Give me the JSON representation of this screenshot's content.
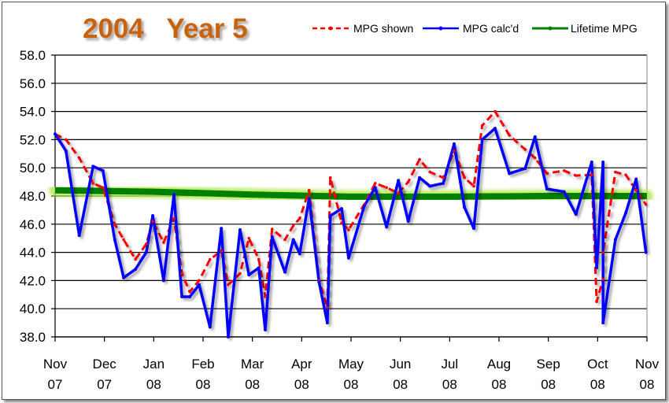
{
  "chart_data": {
    "type": "line",
    "title": "2004   Year 5",
    "xlabel": "",
    "ylabel": "",
    "ylim": [
      38.0,
      58.0
    ],
    "yticks": [
      "38.0",
      "40.0",
      "42.0",
      "44.0",
      "46.0",
      "48.0",
      "50.0",
      "52.0",
      "54.0",
      "56.0",
      "58.0"
    ],
    "xlim": [
      0,
      12
    ],
    "xticks": [
      [
        "Nov",
        "07"
      ],
      [
        "Dec",
        "07"
      ],
      [
        "Jan",
        "08"
      ],
      [
        "Feb",
        "08"
      ],
      [
        "Mar",
        "08"
      ],
      [
        "Apr",
        "08"
      ],
      [
        "May",
        "08"
      ],
      [
        "Jun",
        "08"
      ],
      [
        "Jul",
        "08"
      ],
      [
        "Aug",
        "08"
      ],
      [
        "Sep",
        "08"
      ],
      [
        "Oct",
        "08"
      ],
      [
        "Nov",
        "08"
      ]
    ],
    "x_units": "months since Nov 07",
    "grid": "horizontal",
    "legend_position": "top-right",
    "x": [
      0,
      0.22,
      0.49,
      0.77,
      0.97,
      1.21,
      1.39,
      1.63,
      1.85,
      1.98,
      2.2,
      2.41,
      2.57,
      2.73,
      2.92,
      3.14,
      3.37,
      3.51,
      3.75,
      3.93,
      4.13,
      4.26,
      4.4,
      4.66,
      4.83,
      4.96,
      5.15,
      5.35,
      5.52,
      5.58,
      5.81,
      5.95,
      6.27,
      6.49,
      6.72,
      6.96,
      7.16,
      7.39,
      7.6,
      7.87,
      8.09,
      8.3,
      8.49,
      8.66,
      8.92,
      9.21,
      9.53,
      9.73,
      9.97,
      10.32,
      10.56,
      10.88,
      10.98,
      11.11,
      11.11,
      11.36,
      11.57,
      11.78,
      11.98
    ],
    "series": [
      {
        "name": "MPG shown",
        "color": "#ff0000",
        "style": "dashed",
        "values": [
          52.4,
          52.0,
          50.7,
          48.9,
          48.6,
          46.0,
          44.9,
          43.5,
          44.6,
          46.2,
          44.7,
          46.4,
          42.5,
          41.2,
          42.0,
          43.5,
          44.1,
          41.7,
          42.5,
          45.0,
          43.5,
          40.85,
          45.65,
          44.9,
          45.9,
          46.4,
          48.4,
          42.0,
          40.1,
          49.3,
          46.1,
          45.6,
          47.4,
          48.9,
          48.6,
          48.2,
          49.0,
          50.6,
          49.7,
          49.3,
          51.2,
          49.3,
          48.7,
          53.0,
          54.0,
          52.3,
          51.3,
          50.7,
          49.6,
          49.8,
          49.45,
          49.5,
          40.5,
          42.1,
          44.0,
          49.7,
          49.5,
          48.4,
          47.4
        ]
      },
      {
        "name": "MPG calc'd",
        "color": "#0000ff",
        "style": "solid",
        "values": [
          52.4,
          51.2,
          45.2,
          50.1,
          49.8,
          44.9,
          42.2,
          42.8,
          44.0,
          46.6,
          42.0,
          48.1,
          40.85,
          40.85,
          41.7,
          38.7,
          45.7,
          38.0,
          45.6,
          42.4,
          42.9,
          38.5,
          45.1,
          42.6,
          44.9,
          43.9,
          47.8,
          41.9,
          39.0,
          46.6,
          47.1,
          43.6,
          47.3,
          48.6,
          45.8,
          49.1,
          46.2,
          49.3,
          48.7,
          48.9,
          51.7,
          47.2,
          45.7,
          52.0,
          52.8,
          49.6,
          49.95,
          52.2,
          48.5,
          48.3,
          46.7,
          50.4,
          42.9,
          50.4,
          39.0,
          44.9,
          46.8,
          49.2,
          44.0
        ]
      },
      {
        "name": "Lifetime MPG",
        "color": "#008000",
        "style": "thick",
        "x": [
          0,
          2,
          4,
          6,
          8,
          10,
          12
        ],
        "values": [
          48.4,
          48.3,
          48.1,
          47.95,
          47.95,
          48.0,
          48.0
        ]
      }
    ]
  }
}
